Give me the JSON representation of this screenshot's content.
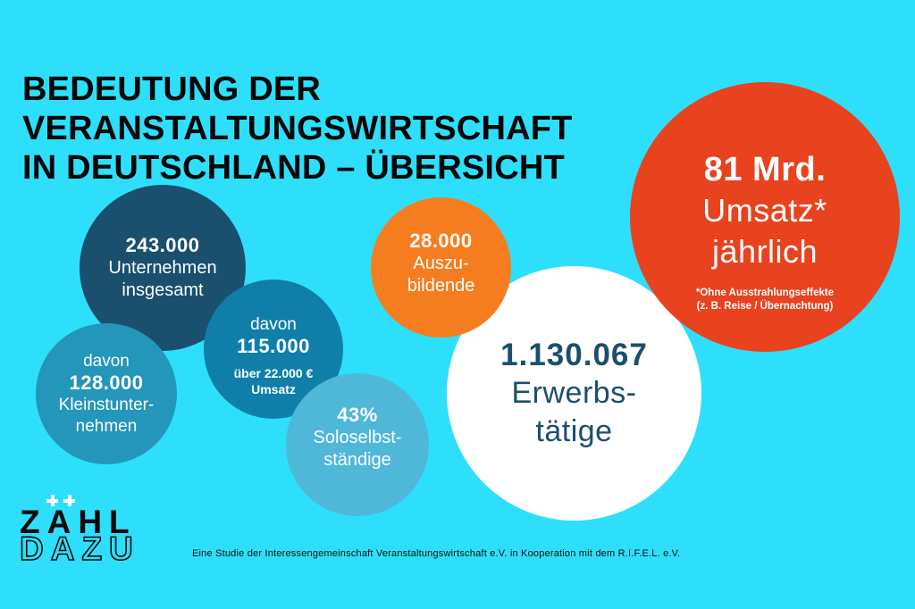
{
  "title": {
    "lines": [
      "BEDEUTUNG DER",
      "VERANSTALTUNGSWIRTSCHAFT",
      "IN DEUTSCHLAND – ÜBERSICHT"
    ]
  },
  "bubbles": {
    "companies": {
      "value": "243.000",
      "label_lines": [
        "Unternehmen",
        "insgesamt"
      ],
      "color": "#1a4f6e"
    },
    "micro": {
      "pre": "davon",
      "value": "128.000",
      "label_lines": [
        "Kleinstunter-",
        "nehmen"
      ],
      "color": "#2396ba"
    },
    "revenue22k": {
      "pre": "davon",
      "value": "115.000",
      "sub_lines": [
        "über 22.000 €",
        "Umsatz"
      ],
      "color": "#0f7fa9"
    },
    "solo": {
      "value": "43%",
      "label_lines": [
        "Soloselbst-",
        "ständige"
      ],
      "color": "#4fb7d8"
    },
    "apprentices": {
      "value": "28.000",
      "label_lines": [
        "Auszu-",
        "bildende"
      ],
      "color": "#f57d20"
    },
    "workers": {
      "value": "1.130.067",
      "label_lines": [
        "Erwerbs-",
        "tätige"
      ],
      "color": "#ffffff",
      "text_color": "#1a4f6e"
    },
    "turnover": {
      "value": "81 Mrd.",
      "label_lines": [
        "Umsatz*",
        "jährlich"
      ],
      "note_lines": [
        "*Ohne Ausstrahlungseffekte",
        "(z. B. Reise / Übernachtung)"
      ],
      "color": "#e8421f"
    }
  },
  "logo": {
    "top": "ZAHL",
    "bottom": "DAZU",
    "umlaut_icon": "plus-plus"
  },
  "footer": "Eine Studie der Interessengemeinschaft Veranstaltungswirtschaft e.V. in Kooperation mit dem R.I.F.E.L. e.V.",
  "colors": {
    "background": "#2edffb",
    "title_text": "#060606",
    "navy": "#1a4f6e",
    "teal": "#2396ba",
    "blue": "#0f7fa9",
    "light_blue": "#4fb7d8",
    "orange": "#f57d20",
    "red": "#e8421f",
    "white": "#ffffff"
  },
  "chart_data": {
    "type": "bubble",
    "title": "Bedeutung der Veranstaltungswirtschaft in Deutschland – Übersicht",
    "legend_position": "none",
    "points": [
      {
        "label": "Unternehmen insgesamt",
        "value": 243000,
        "display": "243.000",
        "color": "#1a4f6e"
      },
      {
        "label": "davon Kleinstunternehmen",
        "value": 128000,
        "display": "davon 128.000",
        "color": "#2396ba"
      },
      {
        "label": "davon über 22.000 € Umsatz",
        "value": 115000,
        "display": "davon 115.000",
        "color": "#0f7fa9"
      },
      {
        "label": "Soloselbstständige",
        "value": 43,
        "unit": "%",
        "display": "43%",
        "color": "#4fb7d8"
      },
      {
        "label": "Auszubildende",
        "value": 28000,
        "display": "28.000",
        "color": "#f57d20"
      },
      {
        "label": "Erwerbstätige",
        "value": 1130067,
        "display": "1.130.067",
        "color": "#ffffff"
      },
      {
        "label": "Umsatz jährlich",
        "value": 81,
        "unit": "Mrd.",
        "display": "81 Mrd.",
        "note": "*Ohne Ausstrahlungseffekte (z. B. Reise / Übernachtung)",
        "color": "#e8421f"
      }
    ],
    "source": "Eine Studie der Interessengemeinschaft Veranstaltungswirtschaft e.V. in Kooperation mit dem R.I.F.E.L. e.V."
  }
}
